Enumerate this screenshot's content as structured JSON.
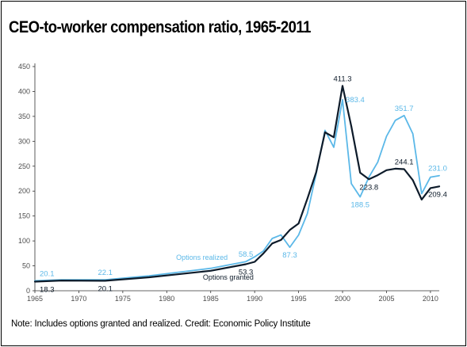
{
  "title": "CEO-to-worker compensation ratio, 1965-2011",
  "note": "Note: Includes options granted and realized.  Credit: Economic Policy Institute",
  "colors": {
    "options_granted": "#0d1b2a",
    "options_realized": "#5bb8e8",
    "axis": "#333333"
  },
  "chart_data": {
    "type": "line",
    "title": "CEO-to-worker compensation ratio, 1965-2011",
    "xlabel": "",
    "ylabel": "",
    "xlim": [
      1965,
      2011
    ],
    "ylim": [
      0,
      450
    ],
    "x_ticks": [
      1965,
      1970,
      1975,
      1980,
      1985,
      1990,
      1995,
      2000,
      2005,
      2010
    ],
    "y_ticks": [
      0,
      50,
      100,
      150,
      200,
      250,
      300,
      350,
      400,
      450
    ],
    "grid": false,
    "legend": "none",
    "series": [
      {
        "name": "Options realized",
        "color": "#5bb8e8",
        "points": [
          [
            1965,
            20.1
          ],
          [
            1968,
            22
          ],
          [
            1973,
            22.1
          ],
          [
            1978,
            30
          ],
          [
            1985,
            45
          ],
          [
            1989,
            58.5
          ],
          [
            1990,
            68
          ],
          [
            1991,
            80
          ],
          [
            1992,
            105
          ],
          [
            1993,
            112
          ],
          [
            1994,
            87.3
          ],
          [
            1995,
            112
          ],
          [
            1996,
            155
          ],
          [
            1997,
            235
          ],
          [
            1998,
            322
          ],
          [
            1999,
            288
          ],
          [
            2000,
            383.4
          ],
          [
            2001,
            215
          ],
          [
            2002,
            188.5
          ],
          [
            2003,
            228
          ],
          [
            2004,
            258
          ],
          [
            2005,
            310
          ],
          [
            2006,
            342
          ],
          [
            2007,
            351.7
          ],
          [
            2008,
            315
          ],
          [
            2009,
            195
          ],
          [
            2010,
            228
          ],
          [
            2011,
            231.0
          ]
        ]
      },
      {
        "name": "Options granted",
        "color": "#0d1b2a",
        "points": [
          [
            1965,
            18.3
          ],
          [
            1968,
            20.5
          ],
          [
            1973,
            20.1
          ],
          [
            1978,
            27
          ],
          [
            1985,
            40
          ],
          [
            1989,
            53.3
          ],
          [
            1990,
            58
          ],
          [
            1991,
            75
          ],
          [
            1992,
            95
          ],
          [
            1993,
            102
          ],
          [
            1994,
            122
          ],
          [
            1995,
            135
          ],
          [
            1996,
            185
          ],
          [
            1997,
            238
          ],
          [
            1998,
            318
          ],
          [
            1999,
            308
          ],
          [
            2000,
            411.3
          ],
          [
            2001,
            330
          ],
          [
            2002,
            237
          ],
          [
            2003,
            223.8
          ],
          [
            2004,
            232
          ],
          [
            2005,
            242
          ],
          [
            2006,
            245
          ],
          [
            2007,
            244.1
          ],
          [
            2008,
            222
          ],
          [
            2009,
            183
          ],
          [
            2010,
            206
          ],
          [
            2011,
            209.4
          ]
        ]
      }
    ],
    "data_labels": [
      {
        "text": "20.1",
        "x": 1965,
        "y": 20.1,
        "series": "Options realized",
        "pos": "above"
      },
      {
        "text": "22.1",
        "x": 1973,
        "y": 22.1,
        "series": "Options realized",
        "pos": "above"
      },
      {
        "text": "58.5",
        "x": 1989,
        "y": 58.5,
        "series": "Options realized",
        "pos": "above"
      },
      {
        "text": "87.3",
        "x": 1994,
        "y": 87.3,
        "series": "Options realized",
        "pos": "below"
      },
      {
        "text": "383.4",
        "x": 2000,
        "y": 383.4,
        "series": "Options realized",
        "pos": "right"
      },
      {
        "text": "188.5",
        "x": 2002,
        "y": 188.5,
        "series": "Options realized",
        "pos": "below"
      },
      {
        "text": "351.7",
        "x": 2007,
        "y": 351.7,
        "series": "Options realized",
        "pos": "above"
      },
      {
        "text": "231.0",
        "x": 2011,
        "y": 231.0,
        "series": "Options realized",
        "pos": "above"
      },
      {
        "text": "18.3",
        "x": 1965,
        "y": 18.3,
        "series": "Options granted",
        "pos": "below"
      },
      {
        "text": "20.1",
        "x": 1973,
        "y": 20.1,
        "series": "Options granted",
        "pos": "below"
      },
      {
        "text": "53.3",
        "x": 1989,
        "y": 53.3,
        "series": "Options granted",
        "pos": "below"
      },
      {
        "text": "411.3",
        "x": 2000,
        "y": 411.3,
        "series": "Options granted",
        "pos": "above"
      },
      {
        "text": "223.8",
        "x": 2003,
        "y": 223.8,
        "series": "Options granted",
        "pos": "below"
      },
      {
        "text": "244.1",
        "x": 2007,
        "y": 244.1,
        "series": "Options granted",
        "pos": "above"
      },
      {
        "text": "209.4",
        "x": 2011,
        "y": 209.4,
        "series": "Options granted",
        "pos": "below"
      }
    ],
    "series_labels": [
      {
        "text": "Options realized",
        "series": "Options realized",
        "x": 1984,
        "y": 62
      },
      {
        "text": "Options granted",
        "series": "Options granted",
        "x": 1987,
        "y": 22
      }
    ]
  }
}
